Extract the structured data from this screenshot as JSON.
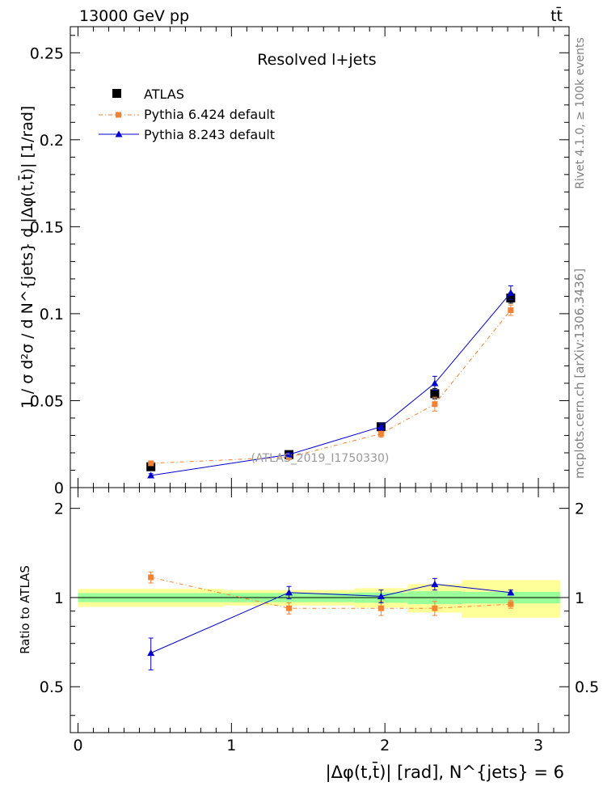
{
  "header": {
    "energy_label": "13000 GeV pp",
    "process_label": "tt̄"
  },
  "side_labels": {
    "rivet": "Rivet 4.1.0, ≥ 100k events",
    "mcplots": "mcplots.cern.ch [arXiv:1306.3436]"
  },
  "main_plot": {
    "title": "Resolved l+jets",
    "analysis_id": "(ATLAS_2019_I1750330)",
    "y_label": "1 / σ d²σ / d N^{jets} d |Δφ(t,t̄)| [1/rad]",
    "y_ticks": [
      "0",
      "0.05",
      "0.1",
      "0.15",
      "0.2",
      "0.25"
    ]
  },
  "ratio_plot": {
    "y_label": "Ratio to ATLAS",
    "y_ticks": [
      "0.5",
      "1",
      "2"
    ]
  },
  "x_axis": {
    "label": "|Δφ(t,t̄)| [rad], N^{jets} = 6",
    "ticks": [
      "0",
      "1",
      "2",
      "3"
    ]
  },
  "legend": {
    "entries": [
      {
        "name": "ATLAS",
        "color": "#000000",
        "marker": "square"
      },
      {
        "name": "Pythia 6.424 default",
        "color": "#f58231",
        "marker": "small-square"
      },
      {
        "name": "Pythia 8.243 default",
        "color": "#0000cc",
        "marker": "triangle"
      }
    ]
  },
  "chart_data": {
    "type": "scatter",
    "title": "Resolved l+jets",
    "xlabel": "|Δφ(t,t̄)| [rad], N^{jets} = 6",
    "ylabel": "1 / σ d²σ / d N^{jets} d |Δφ(t,t̄)| [1/rad]",
    "xlim": [
      -0.05,
      3.2
    ],
    "ylim": [
      0,
      0.265
    ],
    "bin_edges": [
      0,
      0.95,
      1.8,
      2.15,
      2.5,
      3.1416
    ],
    "x": [
      0.475,
      1.375,
      1.975,
      2.325,
      2.82
    ],
    "series": [
      {
        "name": "ATLAS",
        "values": [
          0.012,
          0.019,
          0.035,
          0.054,
          0.109
        ],
        "errors": [
          0.001,
          0.001,
          0.002,
          0.003,
          0.003
        ]
      },
      {
        "name": "Pythia 6.424 default",
        "values": [
          0.014,
          0.0175,
          0.031,
          0.048,
          0.102
        ],
        "errors": [
          0.001,
          0.001,
          0.002,
          0.004,
          0.003
        ]
      },
      {
        "name": "Pythia 8.243 default",
        "values": [
          0.007,
          0.019,
          0.035,
          0.06,
          0.112
        ],
        "errors": [
          0.001,
          0.001,
          0.002,
          0.004,
          0.004
        ]
      }
    ],
    "ratio": {
      "ylabel": "Ratio to ATLAS",
      "ylim": [
        0.35,
        2.35
      ],
      "band_inner": [
        [
          0.965,
          1.035
        ],
        [
          0.965,
          1.035
        ],
        [
          0.96,
          1.04
        ],
        [
          0.95,
          1.05
        ],
        [
          0.955,
          1.045
        ]
      ],
      "band_outer": [
        [
          0.93,
          1.07
        ],
        [
          0.94,
          1.06
        ],
        [
          0.925,
          1.075
        ],
        [
          0.89,
          1.11
        ],
        [
          0.855,
          1.145
        ]
      ],
      "series": [
        {
          "name": "Pythia 6.424 default",
          "values": [
            1.17,
            0.92,
            0.92,
            0.92,
            0.95
          ],
          "errors": [
            0.05,
            0.04,
            0.05,
            0.05,
            0.03
          ]
        },
        {
          "name": "Pythia 8.243 default",
          "values": [
            0.65,
            1.04,
            1.01,
            1.11,
            1.04
          ],
          "errors": [
            0.08,
            0.05,
            0.05,
            0.05,
            0.02
          ]
        }
      ]
    }
  }
}
